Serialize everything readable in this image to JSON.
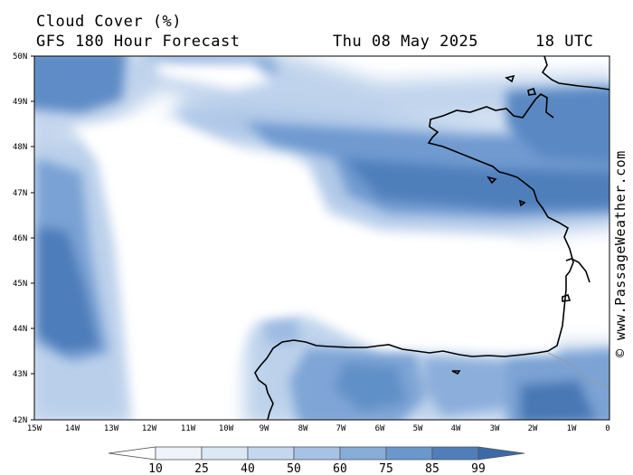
{
  "title": "Cloud Cover (%)",
  "subtitle": "GFS 180 Hour Forecast",
  "date": "Thu 08 May 2025",
  "time": "18 UTC",
  "credit": "© www.PassageWeather.com",
  "lat_labels": [
    "50N",
    "49N",
    "48N",
    "47N",
    "46N",
    "45N",
    "44N",
    "43N",
    "42N"
  ],
  "lon_labels": [
    "15W",
    "14W",
    "13W",
    "12W",
    "11W",
    "10W",
    "9W",
    "8W",
    "7W",
    "6W",
    "5W",
    "4W",
    "3W",
    "2W",
    "1W",
    "0"
  ],
  "legend": {
    "values": [
      "10",
      "25",
      "40",
      "50",
      "60",
      "75",
      "85",
      "99"
    ],
    "colors": [
      "#ffffff",
      "#eef3fa",
      "#dde8f5",
      "#c4d7ee",
      "#a6c2e4",
      "#86acd9",
      "#6a97cc",
      "#4f7fbb",
      "#3c6aa8"
    ]
  }
}
